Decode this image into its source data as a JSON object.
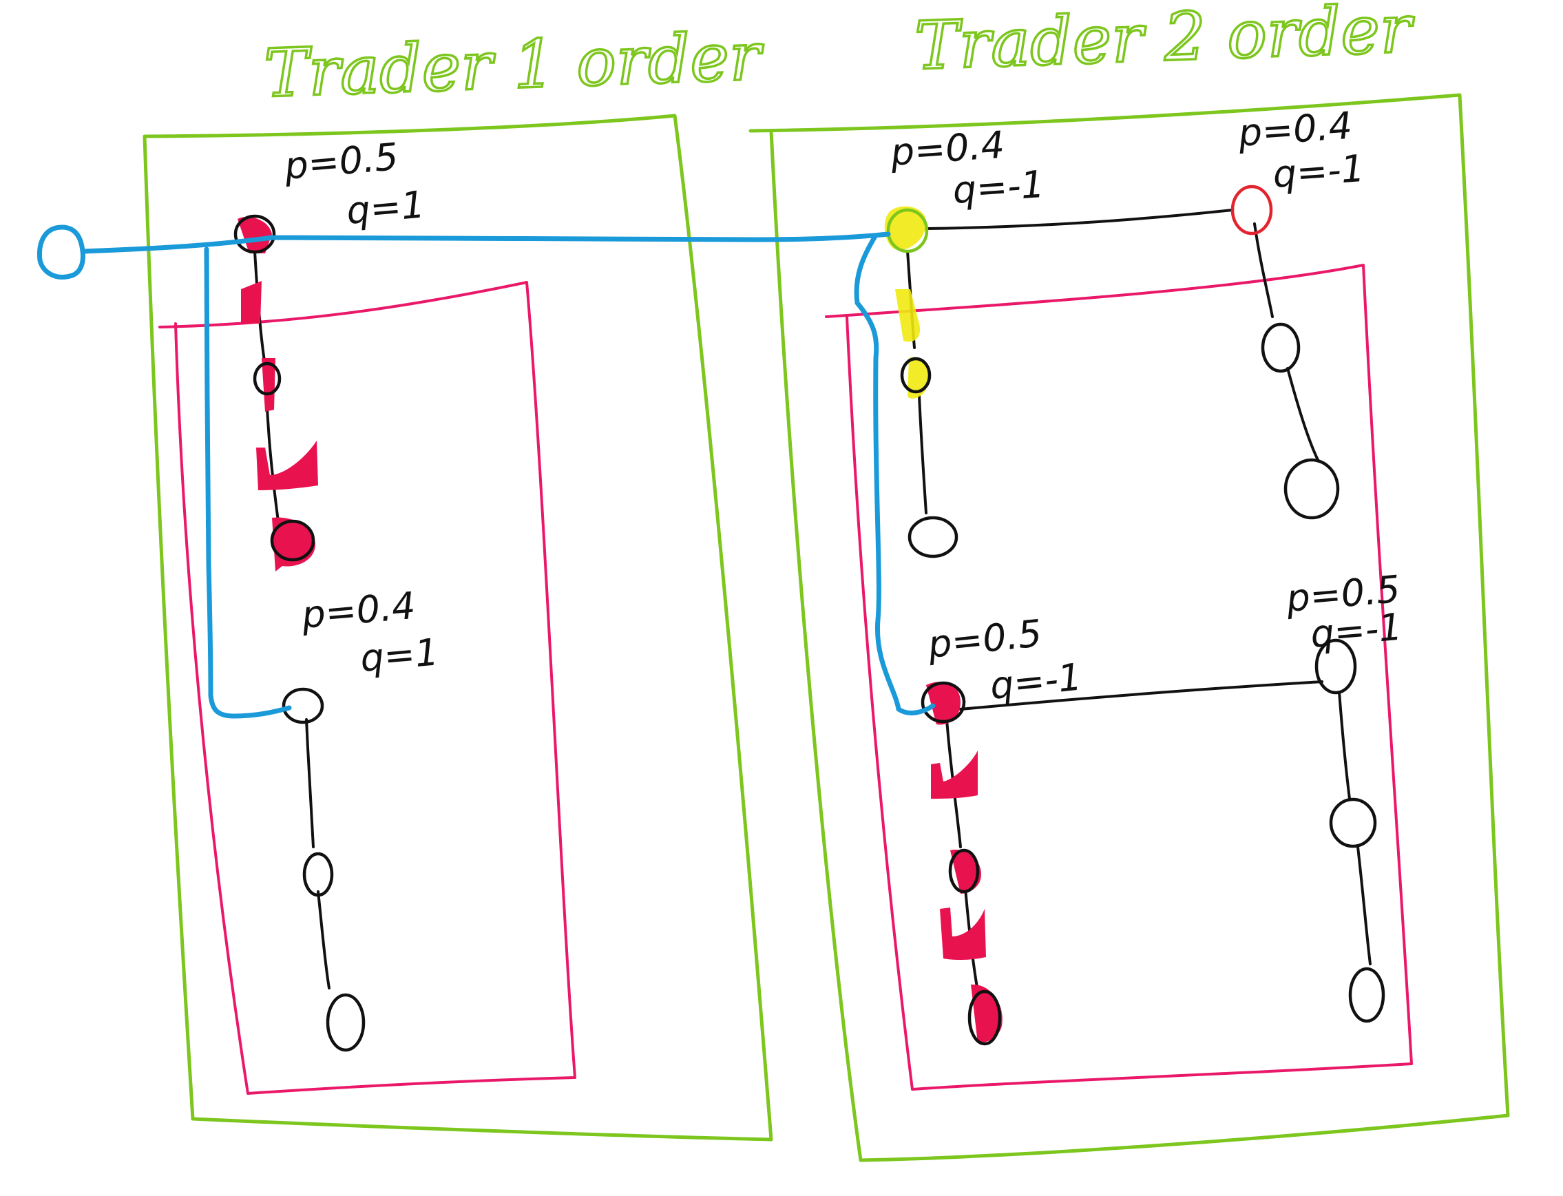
{
  "colors": {
    "green": "#7cc61d",
    "pink": "#ea1869",
    "blue": "#1a9ad8",
    "black": "#111111",
    "red_fill": "#e8124f",
    "yellow": "#f0ea10",
    "red_ring": "#e3232e"
  },
  "titles": {
    "trader1": "Trader 1 order",
    "trader2": "Trader 2 order"
  },
  "labels": {
    "t1_top_p": "p=0.5",
    "t1_top_q": "q=1",
    "t1_bottom_p": "p=0.4",
    "t1_bottom_q": "q=1",
    "t2_top_left_p": "p=0.4",
    "t2_top_left_q": "q=-1",
    "t2_top_right_p": "p=0.4",
    "t2_top_right_q": "q=-1",
    "t2_bottom_left_p": "p=0.5",
    "t2_bottom_left_q": "q=-1",
    "t2_bottom_right_p": "p=0.5",
    "t2_bottom_right_q": "q=-1"
  }
}
